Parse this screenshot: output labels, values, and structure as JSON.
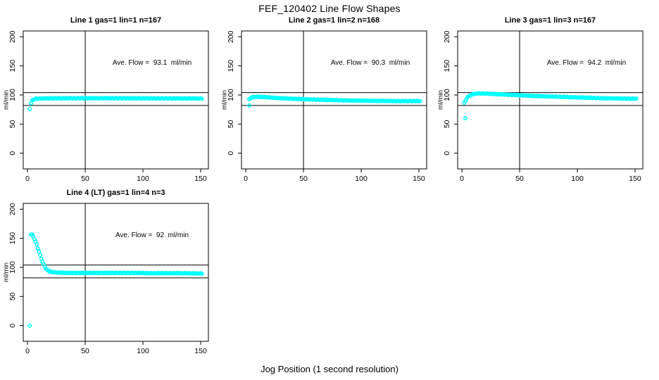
{
  "page": {
    "title": "FEF_120402  Line Flow Shapes",
    "x_axis_label": "Jog Position (1 second resolution)"
  },
  "colors": {
    "marker": "#00ffff",
    "axis": "#000000",
    "background": "#ffffff",
    "text": "#000000"
  },
  "chart_data": [
    {
      "type": "scatter",
      "title": "Line 1 gas=1 lin=1 n=167",
      "line": 1,
      "gas": 1,
      "lin": 1,
      "n": 167,
      "annotation": "Ave. Flow =  93.1  ml/min",
      "ave_flow_ml_min": 93.1,
      "ylabel": "ml/min",
      "x_ticks": [
        0,
        50,
        100,
        150
      ],
      "y_ticks": [
        0,
        50,
        100,
        150,
        200
      ],
      "xlim": [
        -3.7,
        156.7
      ],
      "ylim": [
        -27,
        210
      ],
      "grid": false,
      "hlines": [
        82,
        104
      ],
      "vline": 50,
      "outliers": [
        [
          2,
          76
        ]
      ],
      "profile": [
        [
          3,
          86
        ],
        [
          4,
          90
        ],
        [
          5,
          92
        ],
        [
          7,
          93.5
        ],
        [
          12,
          94
        ],
        [
          20,
          94.3
        ],
        [
          40,
          94.5
        ],
        [
          70,
          94.5
        ],
        [
          100,
          94.3
        ],
        [
          130,
          94
        ],
        [
          151,
          94
        ]
      ]
    },
    {
      "type": "scatter",
      "title": "Line 2 gas=1 lin=2 n=168",
      "line": 2,
      "gas": 1,
      "lin": 2,
      "n": 168,
      "annotation": "Ave. Flow =  90.3  ml/min",
      "ave_flow_ml_min": 90.3,
      "ylabel": "ml/min",
      "x_ticks": [
        0,
        50,
        100,
        150
      ],
      "y_ticks": [
        0,
        50,
        100,
        150,
        200
      ],
      "xlim": [
        -3.7,
        156.7
      ],
      "ylim": [
        -27,
        210
      ],
      "grid": false,
      "hlines": [
        82,
        104
      ],
      "vline": 50,
      "outliers": [
        [
          3,
          82
        ]
      ],
      "profile": [
        [
          3,
          92
        ],
        [
          4,
          94.5
        ],
        [
          6,
          96.5
        ],
        [
          10,
          97
        ],
        [
          16,
          96.5
        ],
        [
          25,
          95
        ],
        [
          40,
          93.5
        ],
        [
          55,
          92.5
        ],
        [
          70,
          91.5
        ],
        [
          90,
          90.5
        ],
        [
          110,
          90
        ],
        [
          130,
          89.5
        ],
        [
          151,
          89.5
        ]
      ]
    },
    {
      "type": "scatter",
      "title": "Line 3 gas=1 lin=3 n=167",
      "line": 3,
      "gas": 1,
      "lin": 3,
      "n": 167,
      "annotation": "Ave. Flow =  94.2  ml/min",
      "ave_flow_ml_min": 94.2,
      "ylabel": "ml/min",
      "x_ticks": [
        0,
        50,
        100,
        150
      ],
      "y_ticks": [
        0,
        50,
        100,
        150,
        200
      ],
      "xlim": [
        -3.7,
        156.7
      ],
      "ylim": [
        -27,
        210
      ],
      "grid": false,
      "hlines": [
        82,
        104
      ],
      "vline": 50,
      "outliers": [
        [
          3,
          60
        ]
      ],
      "profile": [
        [
          2,
          86
        ],
        [
          3,
          90
        ],
        [
          4,
          94
        ],
        [
          6,
          98
        ],
        [
          9,
          101
        ],
        [
          13,
          102.5
        ],
        [
          20,
          102.5
        ],
        [
          30,
          101.5
        ],
        [
          45,
          100
        ],
        [
          60,
          98.5
        ],
        [
          75,
          97.5
        ],
        [
          90,
          96.5
        ],
        [
          105,
          95.5
        ],
        [
          120,
          94.5
        ],
        [
          135,
          94
        ],
        [
          151,
          93.5
        ]
      ]
    },
    {
      "type": "scatter",
      "title": "Line 4 (LT) gas=1 lin=4 n=3",
      "line": 4,
      "gas": 1,
      "lin": 4,
      "n": 3,
      "annotation": "Ave. Flow =  92  ml/min",
      "ave_flow_ml_min": 92,
      "ylabel": "ml/min",
      "x_ticks": [
        0,
        50,
        100,
        150
      ],
      "y_ticks": [
        0,
        50,
        100,
        150,
        200
      ],
      "xlim": [
        -3.7,
        156.7
      ],
      "ylim": [
        -27,
        210
      ],
      "grid": false,
      "hlines": [
        82,
        104
      ],
      "vline": 50,
      "outliers": [
        [
          2,
          0
        ]
      ],
      "profile": [
        [
          3,
          157
        ],
        [
          4,
          156
        ],
        [
          5,
          153
        ],
        [
          6,
          149
        ],
        [
          7,
          144
        ],
        [
          8,
          139
        ],
        [
          9,
          133
        ],
        [
          10,
          127
        ],
        [
          11,
          121
        ],
        [
          12,
          115
        ],
        [
          13,
          110
        ],
        [
          14,
          105
        ],
        [
          15,
          101
        ],
        [
          16,
          98
        ],
        [
          17,
          96
        ],
        [
          18,
          94
        ],
        [
          20,
          92.5
        ],
        [
          23,
          91.5
        ],
        [
          27,
          91
        ],
        [
          35,
          90.5
        ],
        [
          50,
          90.5
        ],
        [
          70,
          90.5
        ],
        [
          90,
          90.5
        ],
        [
          110,
          90
        ],
        [
          130,
          90
        ],
        [
          151,
          89.5
        ]
      ]
    }
  ]
}
